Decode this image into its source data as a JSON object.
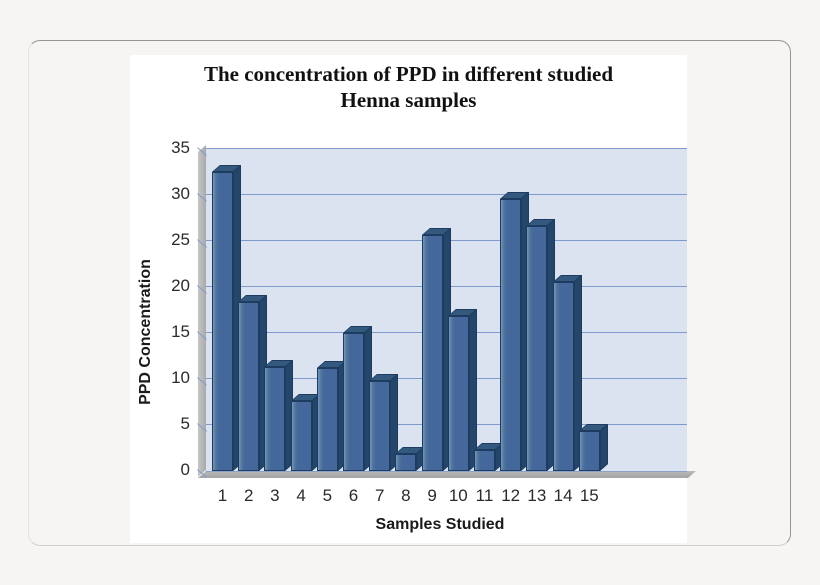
{
  "chart_data": {
    "type": "bar",
    "style": "3d-column",
    "title_lines": [
      "The concentration of PPD in different studied",
      "Henna samples"
    ],
    "xlabel": "Samples Studied",
    "ylabel": "PPD Concentration",
    "categories": [
      "1",
      "2",
      "3",
      "4",
      "5",
      "6",
      "7",
      "8",
      "9",
      "10",
      "11",
      "12",
      "13",
      "14",
      "15"
    ],
    "values": [
      32.5,
      18.4,
      11.3,
      7.6,
      11.2,
      15.0,
      9.8,
      1.8,
      25.7,
      16.8,
      2.3,
      29.6,
      26.6,
      20.5,
      4.3
    ],
    "yticks": [
      0,
      5,
      10,
      15,
      20,
      25,
      30,
      35
    ],
    "ylim": [
      0,
      35
    ],
    "grid": true,
    "legend_position": "none",
    "colors": {
      "bar_front": "#44689b",
      "bar_front_highlight": "#7295bf",
      "bar_top": "#33597f",
      "bar_side": "#24466b",
      "bar_border": "#1d3c60",
      "plot_background": "#dce3f0",
      "gridline": "#7e9bcc",
      "wall_floor_gray": "#b0b0b0",
      "chart_background": "#ffffff",
      "page_background": "#f6f5f4",
      "text": "#1a1a1a"
    }
  }
}
